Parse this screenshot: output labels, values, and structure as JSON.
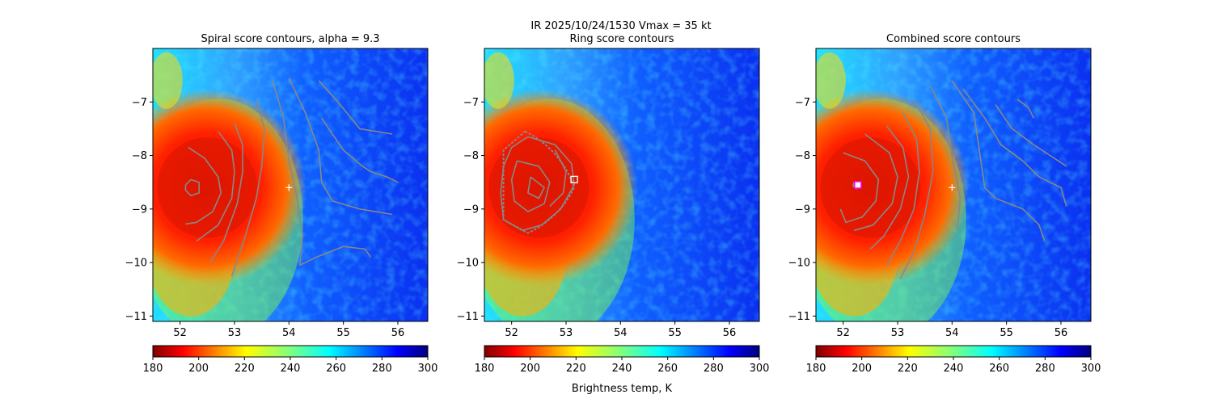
{
  "suptitle": "IR  2025/10/24/1530    Vmax = 35 kt",
  "colorbar": {
    "label": "Brightness temp, K",
    "vmin": 180,
    "vmax": 300,
    "ticks": [
      "180",
      "200",
      "220",
      "240",
      "260",
      "280",
      "300"
    ],
    "colormap": "jet_r"
  },
  "chart_data": [
    {
      "type": "heatmap",
      "title": "Spiral score contours, alpha =  9.3",
      "x_ticks": [
        "52",
        "53",
        "54",
        "55",
        "56"
      ],
      "y_ticks": [
        "−7",
        "−8",
        "−9",
        "−10",
        "−11"
      ],
      "xlim": [
        51.5,
        56.55
      ],
      "ylim": [
        -11.1,
        -6.0
      ],
      "z_range": [
        180,
        300
      ],
      "contour_color": "#888888",
      "cold_core_center": [
        52.5,
        -8.6
      ],
      "marker": {
        "symbol": "plus",
        "x": 54.0,
        "y": -8.6,
        "color": "#ffffff"
      }
    },
    {
      "type": "heatmap",
      "title": "Ring score contours",
      "x_ticks": [
        "52",
        "53",
        "54",
        "55",
        "56"
      ],
      "y_ticks": [
        "−7",
        "−8",
        "−9",
        "−10",
        "−11"
      ],
      "xlim": [
        51.5,
        56.55
      ],
      "ylim": [
        -11.1,
        -6.0
      ],
      "z_range": [
        180,
        300
      ],
      "contour_color": "#888888",
      "cold_core_center": [
        52.5,
        -8.6
      ],
      "marker": {
        "symbol": "square",
        "x": 53.15,
        "y": -8.45,
        "color": "#ffffff"
      }
    },
    {
      "type": "heatmap",
      "title": "Combined score contours",
      "x_ticks": [
        "52",
        "53",
        "54",
        "55",
        "56"
      ],
      "y_ticks": [
        "−7",
        "−8",
        "−9",
        "−10",
        "−11"
      ],
      "xlim": [
        51.5,
        56.55
      ],
      "ylim": [
        -11.1,
        -6.0
      ],
      "z_range": [
        180,
        300
      ],
      "contour_color": "#888888",
      "cold_core_center": [
        52.5,
        -8.6
      ],
      "marker": {
        "symbol": "plus",
        "x": 54.0,
        "y": -8.6,
        "color": "#ffffff"
      },
      "best_center": {
        "symbol": "square",
        "x": 52.27,
        "y": -8.55,
        "color": "#ff00ff"
      }
    }
  ]
}
